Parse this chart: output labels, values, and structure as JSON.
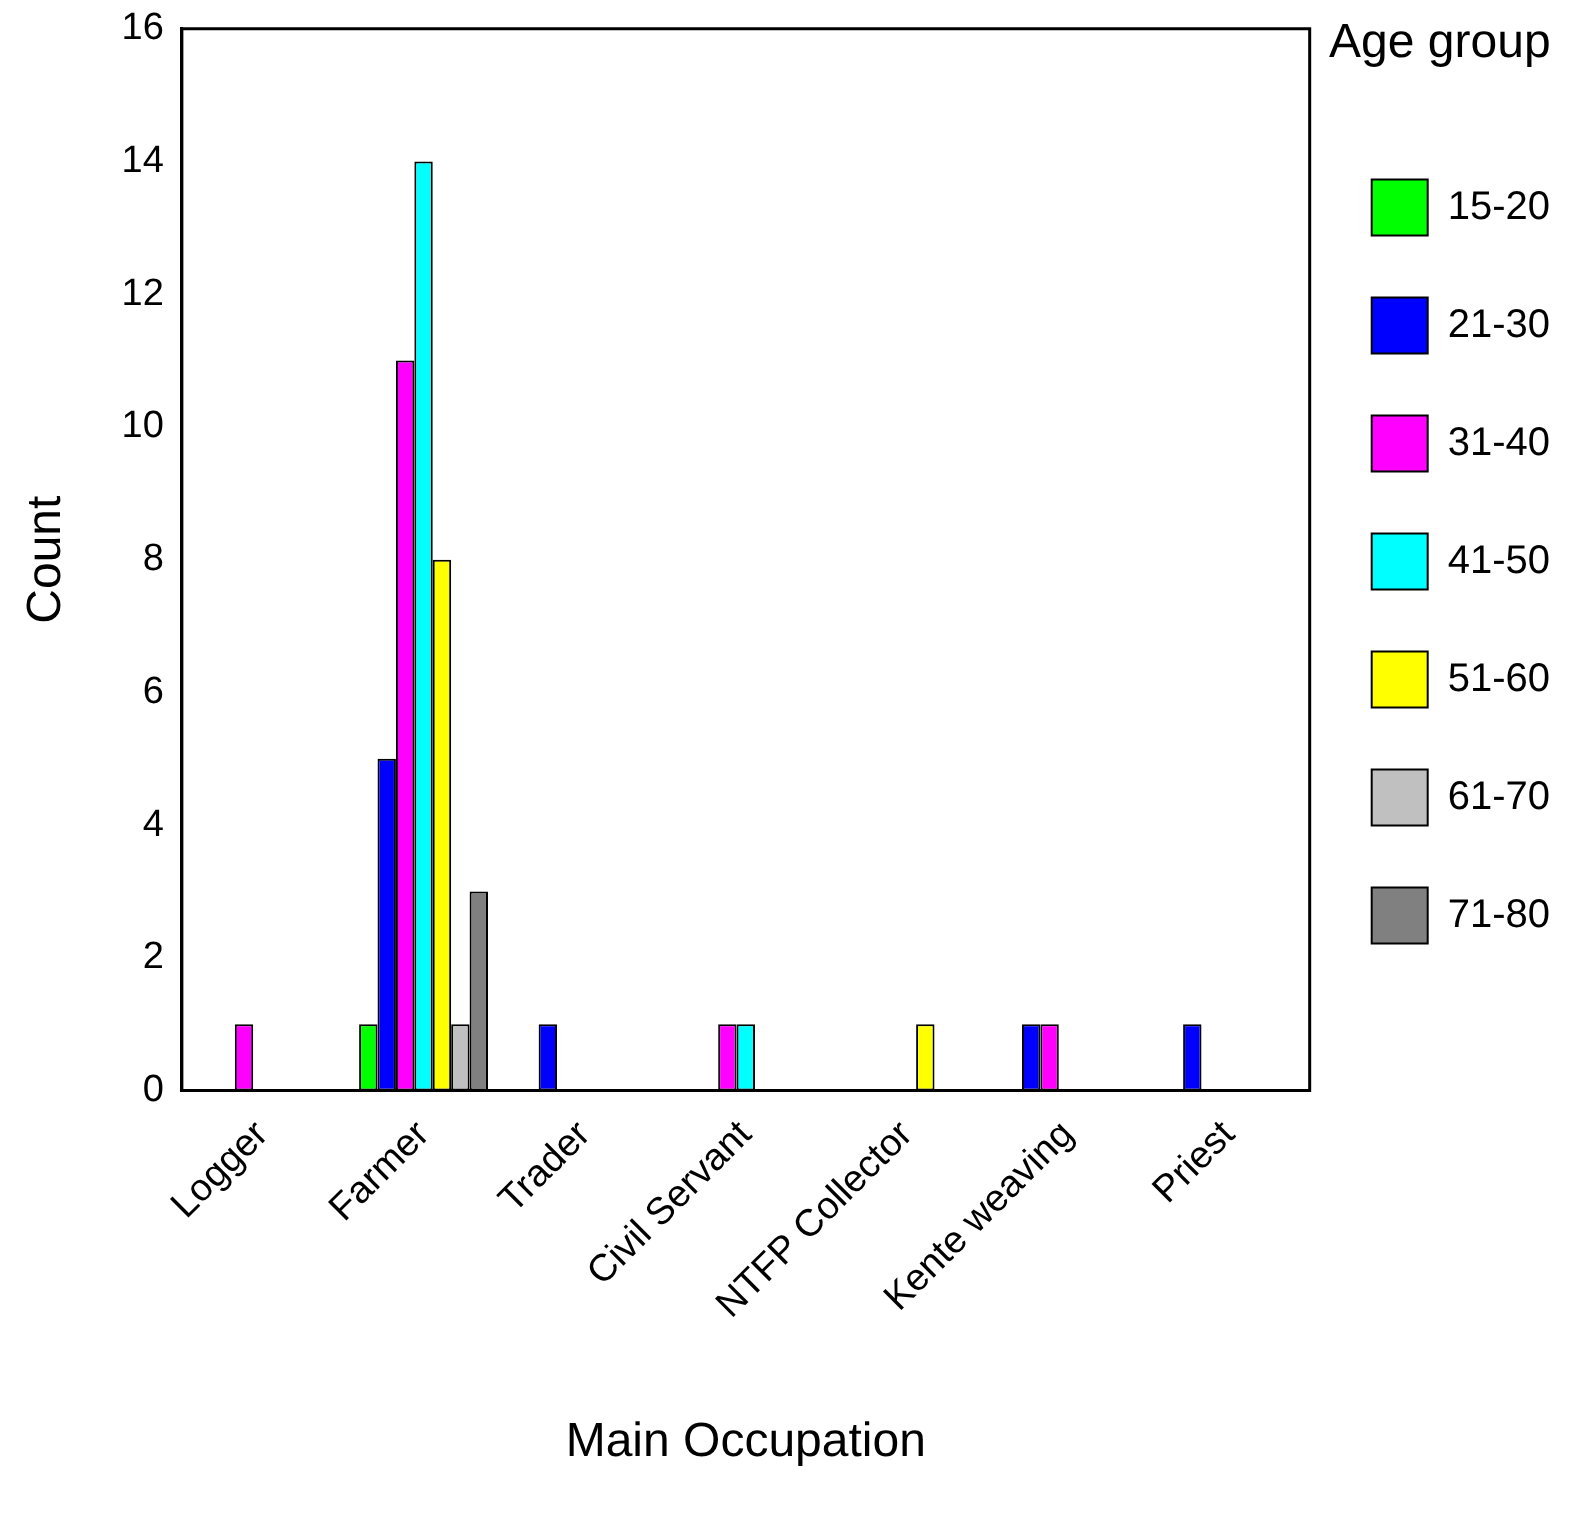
{
  "chart_data": {
    "type": "bar",
    "xlabel": "Main Occupation",
    "ylabel": "Count",
    "legend_title": "Age group",
    "legend": "right",
    "categories": [
      "Logger",
      "Farmer",
      "Trader",
      "Civil Servant",
      "NTFP Collector",
      "Kente weaving",
      "Priest"
    ],
    "series": [
      {
        "name": "15-20",
        "color": "#00ff00",
        "values": [
          0,
          1,
          0,
          0,
          0,
          0,
          0
        ]
      },
      {
        "name": "21-30",
        "color": "#0000ff",
        "values": [
          0,
          5,
          1,
          0,
          0,
          1,
          1
        ]
      },
      {
        "name": "31-40",
        "color": "#ff00ff",
        "values": [
          1,
          11,
          0,
          1,
          0,
          1,
          0
        ]
      },
      {
        "name": "41-50",
        "color": "#00ffff",
        "values": [
          0,
          14,
          0,
          1,
          0,
          0,
          0
        ]
      },
      {
        "name": "51-60",
        "color": "#ffff00",
        "values": [
          0,
          8,
          0,
          0,
          1,
          0,
          0
        ]
      },
      {
        "name": "61-70",
        "color": "#c0c0c0",
        "values": [
          0,
          1,
          0,
          0,
          0,
          0,
          0
        ]
      },
      {
        "name": "71-80",
        "color": "#808080",
        "values": [
          0,
          3,
          0,
          0,
          0,
          0,
          0
        ]
      }
    ],
    "ylim": [
      0,
      16
    ],
    "yticks": [
      0,
      2,
      4,
      6,
      8,
      10,
      12,
      14,
      16
    ]
  }
}
